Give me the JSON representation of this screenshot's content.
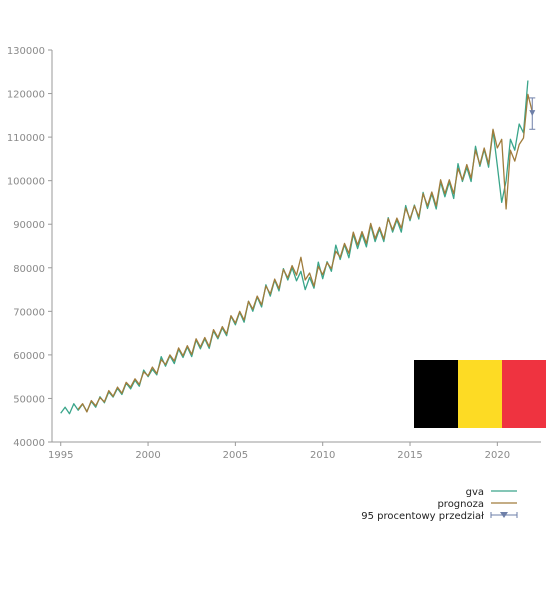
{
  "chart_data": {
    "type": "line",
    "title": "",
    "xlabel": "",
    "ylabel": "",
    "xlim": [
      1994.5,
      2022.5
    ],
    "ylim": [
      40000,
      130000
    ],
    "x_ticks": [
      1995,
      2000,
      2005,
      2010,
      2015,
      2020
    ],
    "x_tick_labels": [
      "1995",
      "2000",
      "2005",
      "2010",
      "2015",
      "2020"
    ],
    "y_ticks": [
      40000,
      50000,
      60000,
      70000,
      80000,
      90000,
      100000,
      110000,
      120000,
      130000
    ],
    "y_tick_labels": [
      "40000",
      "50000",
      "60000",
      "70000",
      "80000",
      "90000",
      "100000",
      "110000",
      "120000",
      "130000"
    ],
    "grid": false,
    "legend_position": "bottom-right, below plot",
    "series": [
      {
        "name": "gva",
        "color": "#3aa58a",
        "points": [
          [
            1995.0,
            46600
          ],
          [
            1995.25,
            48000
          ],
          [
            1995.5,
            46500
          ],
          [
            1995.75,
            48800
          ],
          [
            1996.0,
            47300
          ],
          [
            1996.25,
            48700
          ],
          [
            1996.5,
            47000
          ],
          [
            1996.75,
            49300
          ],
          [
            1997.0,
            48000
          ],
          [
            1997.25,
            50400
          ],
          [
            1997.5,
            49000
          ],
          [
            1997.75,
            51500
          ],
          [
            1998.0,
            50300
          ],
          [
            1998.25,
            52300
          ],
          [
            1998.5,
            50900
          ],
          [
            1998.75,
            53500
          ],
          [
            1999.0,
            52200
          ],
          [
            1999.25,
            54200
          ],
          [
            1999.5,
            52800
          ],
          [
            1999.75,
            56500
          ],
          [
            2000.0,
            55000
          ],
          [
            2000.25,
            56700
          ],
          [
            2000.5,
            55400
          ],
          [
            2000.75,
            59600
          ],
          [
            2001.0,
            57400
          ],
          [
            2001.25,
            59800
          ],
          [
            2001.5,
            58000
          ],
          [
            2001.75,
            61300
          ],
          [
            2002.0,
            59400
          ],
          [
            2002.25,
            61800
          ],
          [
            2002.5,
            59600
          ],
          [
            2002.75,
            63400
          ],
          [
            2003.0,
            61400
          ],
          [
            2003.25,
            63700
          ],
          [
            2003.5,
            61500
          ],
          [
            2003.75,
            65500
          ],
          [
            2004.0,
            63700
          ],
          [
            2004.25,
            66200
          ],
          [
            2004.5,
            64400
          ],
          [
            2004.75,
            68900
          ],
          [
            2005.0,
            66900
          ],
          [
            2005.25,
            69800
          ],
          [
            2005.5,
            67500
          ],
          [
            2005.75,
            72300
          ],
          [
            2006.0,
            70000
          ],
          [
            2006.25,
            73300
          ],
          [
            2006.5,
            71000
          ],
          [
            2006.75,
            76100
          ],
          [
            2007.0,
            73500
          ],
          [
            2007.25,
            77200
          ],
          [
            2007.5,
            74700
          ],
          [
            2007.75,
            79800
          ],
          [
            2008.0,
            77200
          ],
          [
            2008.25,
            80000
          ],
          [
            2008.5,
            77000
          ],
          [
            2008.75,
            79200
          ],
          [
            2009.0,
            75000
          ],
          [
            2009.25,
            77800
          ],
          [
            2009.5,
            75300
          ],
          [
            2009.75,
            81300
          ],
          [
            2010.0,
            77500
          ],
          [
            2010.25,
            81400
          ],
          [
            2010.5,
            79200
          ],
          [
            2010.75,
            85200
          ],
          [
            2011.0,
            81900
          ],
          [
            2011.25,
            85300
          ],
          [
            2011.5,
            82300
          ],
          [
            2011.75,
            87700
          ],
          [
            2012.0,
            84400
          ],
          [
            2012.25,
            87700
          ],
          [
            2012.5,
            84800
          ],
          [
            2012.75,
            89800
          ],
          [
            2013.0,
            86000
          ],
          [
            2013.25,
            88900
          ],
          [
            2013.5,
            86000
          ],
          [
            2013.75,
            91500
          ],
          [
            2014.0,
            88200
          ],
          [
            2014.25,
            91000
          ],
          [
            2014.5,
            88200
          ],
          [
            2014.75,
            94300
          ],
          [
            2015.0,
            90800
          ],
          [
            2015.25,
            94400
          ],
          [
            2015.5,
            91200
          ],
          [
            2015.75,
            97300
          ],
          [
            2016.0,
            93600
          ],
          [
            2016.25,
            97000
          ],
          [
            2016.5,
            93500
          ],
          [
            2016.75,
            99700
          ],
          [
            2017.0,
            96300
          ],
          [
            2017.25,
            99700
          ],
          [
            2017.5,
            95900
          ],
          [
            2017.75,
            103900
          ],
          [
            2018.0,
            99800
          ],
          [
            2018.25,
            103000
          ],
          [
            2018.5,
            99800
          ],
          [
            2018.75,
            107900
          ],
          [
            2019.0,
            103300
          ],
          [
            2019.25,
            107200
          ],
          [
            2019.5,
            103100
          ],
          [
            2019.75,
            111500
          ],
          [
            2020.0,
            103500
          ],
          [
            2020.25,
            95000
          ],
          [
            2020.5,
            100000
          ],
          [
            2020.75,
            109500
          ],
          [
            2021.0,
            107000
          ],
          [
            2021.25,
            113000
          ],
          [
            2021.5,
            111000
          ],
          [
            2021.75,
            123000
          ]
        ]
      },
      {
        "name": "prognoza",
        "color": "#a07c3c",
        "points": [
          [
            1996.0,
            47500
          ],
          [
            1996.25,
            48800
          ],
          [
            1996.5,
            46900
          ],
          [
            1996.75,
            49500
          ],
          [
            1997.0,
            48300
          ],
          [
            1997.25,
            50200
          ],
          [
            1997.5,
            49200
          ],
          [
            1997.75,
            51800
          ],
          [
            1998.0,
            50500
          ],
          [
            1998.25,
            52600
          ],
          [
            1998.5,
            51200
          ],
          [
            1998.75,
            53700
          ],
          [
            1999.0,
            52600
          ],
          [
            1999.25,
            54500
          ],
          [
            1999.5,
            53200
          ],
          [
            1999.75,
            56100
          ],
          [
            2000.0,
            55200
          ],
          [
            2000.25,
            57200
          ],
          [
            2000.5,
            55700
          ],
          [
            2000.75,
            58900
          ],
          [
            2001.0,
            57800
          ],
          [
            2001.25,
            60000
          ],
          [
            2001.5,
            58600
          ],
          [
            2001.75,
            61600
          ],
          [
            2002.0,
            59800
          ],
          [
            2002.25,
            62100
          ],
          [
            2002.5,
            60100
          ],
          [
            2002.75,
            63700
          ],
          [
            2003.0,
            61800
          ],
          [
            2003.25,
            64000
          ],
          [
            2003.5,
            61900
          ],
          [
            2003.75,
            65800
          ],
          [
            2004.0,
            64000
          ],
          [
            2004.25,
            66500
          ],
          [
            2004.5,
            64800
          ],
          [
            2004.75,
            69000
          ],
          [
            2005.0,
            67300
          ],
          [
            2005.25,
            70000
          ],
          [
            2005.5,
            68000
          ],
          [
            2005.75,
            72300
          ],
          [
            2006.0,
            70500
          ],
          [
            2006.25,
            73500
          ],
          [
            2006.5,
            71500
          ],
          [
            2006.75,
            75800
          ],
          [
            2007.0,
            74000
          ],
          [
            2007.25,
            77400
          ],
          [
            2007.5,
            75200
          ],
          [
            2007.75,
            79600
          ],
          [
            2008.0,
            77700
          ],
          [
            2008.25,
            80500
          ],
          [
            2008.5,
            78300
          ],
          [
            2008.75,
            82400
          ],
          [
            2009.0,
            77200
          ],
          [
            2009.25,
            78800
          ],
          [
            2009.5,
            75800
          ],
          [
            2009.75,
            80300
          ],
          [
            2010.0,
            78400
          ],
          [
            2010.25,
            81200
          ],
          [
            2010.5,
            79800
          ],
          [
            2010.75,
            83800
          ],
          [
            2011.0,
            82400
          ],
          [
            2011.25,
            85600
          ],
          [
            2011.5,
            83300
          ],
          [
            2011.75,
            88200
          ],
          [
            2012.0,
            85200
          ],
          [
            2012.25,
            88300
          ],
          [
            2012.5,
            85600
          ],
          [
            2012.75,
            90200
          ],
          [
            2013.0,
            86700
          ],
          [
            2013.25,
            89300
          ],
          [
            2013.5,
            86600
          ],
          [
            2013.75,
            91300
          ],
          [
            2014.0,
            88700
          ],
          [
            2014.25,
            91400
          ],
          [
            2014.5,
            89100
          ],
          [
            2014.75,
            93700
          ],
          [
            2015.0,
            91200
          ],
          [
            2015.25,
            94200
          ],
          [
            2015.5,
            91700
          ],
          [
            2015.75,
            97000
          ],
          [
            2016.0,
            94200
          ],
          [
            2016.25,
            97400
          ],
          [
            2016.5,
            94200
          ],
          [
            2016.75,
            100200
          ],
          [
            2017.0,
            97000
          ],
          [
            2017.25,
            100200
          ],
          [
            2017.5,
            97000
          ],
          [
            2017.75,
            102800
          ],
          [
            2018.0,
            100200
          ],
          [
            2018.25,
            103700
          ],
          [
            2018.5,
            100600
          ],
          [
            2018.75,
            107000
          ],
          [
            2019.0,
            103700
          ],
          [
            2019.25,
            107500
          ],
          [
            2019.5,
            103800
          ],
          [
            2019.75,
            111800
          ],
          [
            2020.0,
            107500
          ],
          [
            2020.25,
            109500
          ],
          [
            2020.5,
            93500
          ],
          [
            2020.75,
            107000
          ],
          [
            2021.0,
            104500
          ],
          [
            2021.25,
            108300
          ],
          [
            2021.5,
            109800
          ],
          [
            2021.75,
            119800
          ],
          [
            2022.0,
            115800
          ]
        ]
      }
    ],
    "interval": {
      "name": "95 procentowy przedział",
      "color": "#6e7fa8",
      "x": 2022.0,
      "center": 115500,
      "low": 111800,
      "high": 119000
    }
  },
  "flag": {
    "name": "Belgium",
    "colors": [
      "#000000",
      "#fddb24",
      "#ef3340"
    ]
  }
}
